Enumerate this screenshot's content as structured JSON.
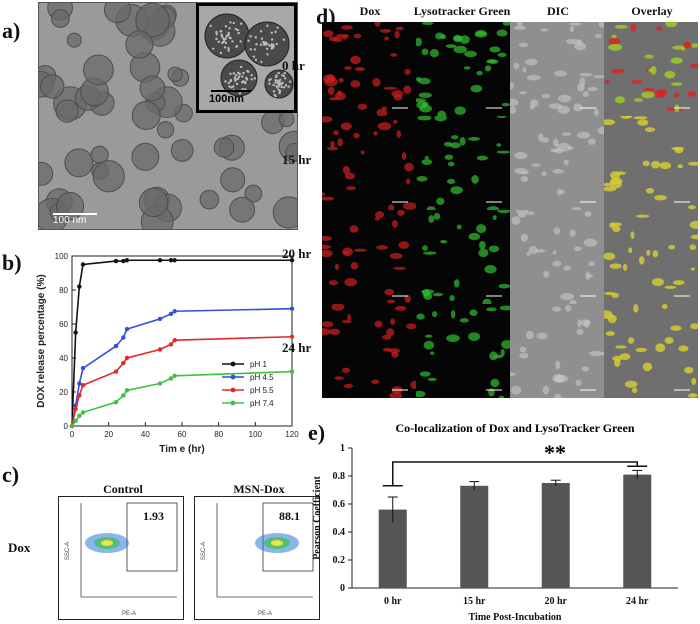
{
  "panels": {
    "a": "a)",
    "b": "b)",
    "c": "c)",
    "d": "d)",
    "e": "e)"
  },
  "panel_a": {
    "inset_scale": "100nm",
    "main_scale": "100 nm"
  },
  "panel_c": {
    "row_label": "Dox",
    "plots": [
      {
        "title": "Control",
        "gate_value": "1.93"
      },
      {
        "title": "MSN-Dox",
        "gate_value": "88.1"
      }
    ],
    "x_axis": "PE-A",
    "y_axis": "SSC-A"
  },
  "panel_d": {
    "columns": [
      "Dox",
      "Lysotracker Green",
      "DIC",
      "Overlay"
    ],
    "column_colors": [
      "#e0201f",
      "#2fae2f",
      "#111111",
      "#111111"
    ],
    "rows": [
      "0 hr",
      "15 hr",
      "20 hr",
      "24 hr"
    ]
  },
  "chart_data": [
    {
      "type": "line",
      "xlabel": "Tim e (hr)",
      "ylabel": "DOX release percentage (%)",
      "xlim": [
        0,
        120
      ],
      "ylim": [
        0,
        100
      ],
      "xticks": [
        0,
        20,
        40,
        60,
        80,
        100,
        120
      ],
      "yticks": [
        0,
        20,
        40,
        60,
        80,
        100
      ],
      "legend_position": "bottom-right",
      "series": [
        {
          "name": "pH 1",
          "color": "#111111",
          "x": [
            0,
            2,
            4,
            6,
            24,
            28,
            30,
            48,
            54,
            56,
            120
          ],
          "y": [
            0,
            55,
            82,
            95,
            97,
            97,
            97.5,
            97.5,
            97.5,
            97.5,
            97.5
          ]
        },
        {
          "name": "pH 4.5",
          "color": "#3050d8",
          "x": [
            0,
            2,
            4,
            6,
            24,
            28,
            30,
            48,
            54,
            56,
            120
          ],
          "y": [
            0,
            12,
            25,
            34,
            47,
            52,
            57,
            63,
            66,
            67.5,
            69
          ]
        },
        {
          "name": "pH 5.5",
          "color": "#e02a2a",
          "x": [
            0,
            2,
            4,
            6,
            24,
            28,
            30,
            48,
            54,
            56,
            120
          ],
          "y": [
            0,
            10,
            18,
            24,
            32,
            37,
            40,
            45,
            48,
            50.5,
            52.5
          ]
        },
        {
          "name": "pH 7.4",
          "color": "#40c040",
          "x": [
            0,
            2,
            4,
            6,
            24,
            28,
            30,
            48,
            54,
            56,
            120
          ],
          "y": [
            0,
            3,
            6,
            8,
            14,
            18,
            21,
            25,
            28,
            29.5,
            32
          ]
        }
      ]
    },
    {
      "type": "bar",
      "title": "Co-localization of Dox and LysoTracker Green",
      "xlabel": "Time Post-Incubation",
      "ylabel": "Pearson Coefficient",
      "ylim": [
        0,
        1
      ],
      "yticks": [
        0,
        0.2,
        0.4,
        0.6,
        0.8,
        1
      ],
      "categories": [
        "0 hr",
        "15 hr",
        "20 hr",
        "24 hr"
      ],
      "values": [
        0.56,
        0.73,
        0.75,
        0.81
      ],
      "errors": [
        0.09,
        0.03,
        0.02,
        0.03
      ],
      "bar_color": "#555555",
      "significance": {
        "label": "**",
        "from": "0 hr",
        "to": "24 hr"
      }
    }
  ]
}
